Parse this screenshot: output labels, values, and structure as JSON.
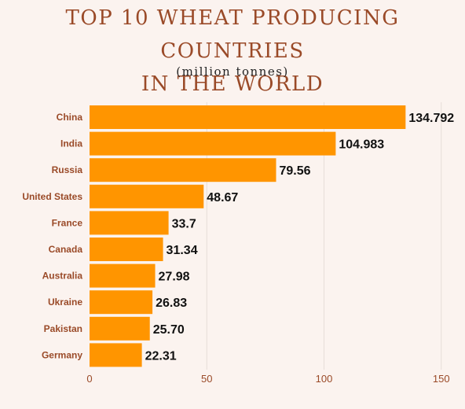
{
  "chart_data": {
    "type": "bar",
    "orientation": "horizontal",
    "title_line1": "TOP 10 WHEAT PRODUCING COUNTRIES",
    "title_line2": "IN THE WORLD",
    "subtitle": "(million tonnes)",
    "categories": [
      "China",
      "India",
      "Russia",
      "United States",
      "France",
      "Canada",
      "Australia",
      "Ukraine",
      "Pakistan",
      "Germany"
    ],
    "values": [
      134.792,
      104.983,
      79.56,
      48.67,
      33.7,
      31.34,
      27.98,
      26.83,
      25.7,
      22.31
    ],
    "value_labels": [
      "134.792",
      "104.983",
      "79.56",
      "48.67",
      "33.7",
      "31.34",
      "27.98",
      "26.83",
      "25.70",
      "22.31"
    ],
    "xticks": [
      "0",
      "50",
      "100",
      "150"
    ],
    "xlim": [
      0,
      150
    ],
    "grid": true,
    "bar_color": "#ff9500",
    "title_color": "#9a4a28"
  }
}
